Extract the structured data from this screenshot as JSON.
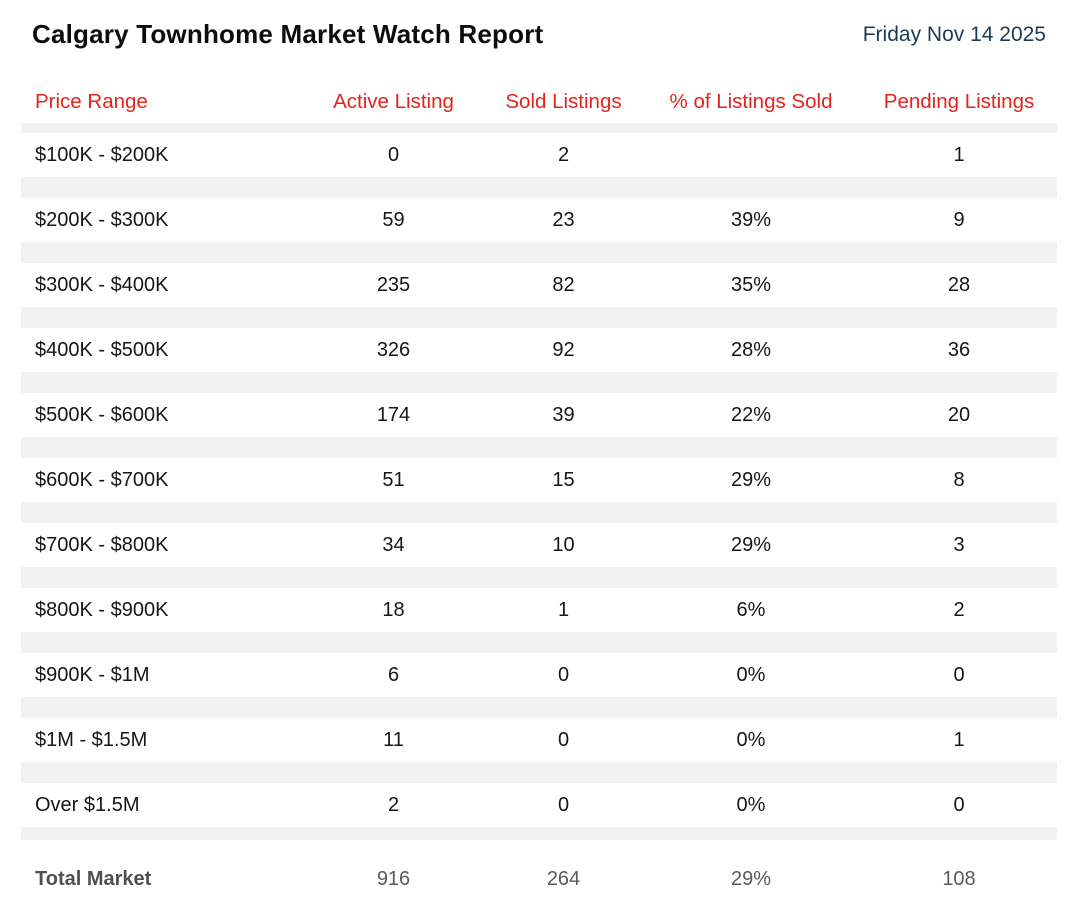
{
  "report": {
    "title": "Calgary Townhome Market Watch Report",
    "date": "Friday Nov 14 2025"
  },
  "colors": {
    "header_red": "#e3231e",
    "date_navy": "#1c3a57",
    "band_gray": "#f1f1f1",
    "total_gray": "#58595b",
    "row_white": "#ffffff"
  },
  "table": {
    "columns": [
      "Price Range",
      "Active Listing",
      "Sold Listings",
      "% of Listings Sold",
      "Pending Listings"
    ],
    "rows": [
      {
        "cells": [
          "$100K - $200K",
          "0",
          "2",
          "",
          "1"
        ]
      },
      {
        "cells": [
          "$200K - $300K",
          "59",
          "23",
          "39%",
          "9"
        ]
      },
      {
        "cells": [
          "$300K - $400K",
          "235",
          "82",
          "35%",
          "28"
        ]
      },
      {
        "cells": [
          "$400K - $500K",
          "326",
          "92",
          "28%",
          "36"
        ]
      },
      {
        "cells": [
          "$500K - $600K",
          "174",
          "39",
          "22%",
          "20"
        ]
      },
      {
        "cells": [
          "$600K - $700K",
          "51",
          "15",
          "29%",
          "8"
        ]
      },
      {
        "cells": [
          "$700K - $800K",
          "34",
          "10",
          "29%",
          "3"
        ]
      },
      {
        "cells": [
          "$800K - $900K",
          "18",
          "1",
          "6%",
          "2"
        ]
      },
      {
        "cells": [
          "$900K - $1M",
          "6",
          "0",
          "0%",
          "0"
        ]
      },
      {
        "cells": [
          "$1M - $1.5M",
          "11",
          "0",
          "0%",
          "1"
        ]
      },
      {
        "cells": [
          "Over $1.5M",
          "2",
          "0",
          "0%",
          "0"
        ]
      }
    ],
    "total": {
      "cells": [
        "Total Market",
        "916",
        "264",
        "29%",
        "108"
      ]
    }
  },
  "chart_data": {
    "type": "table",
    "title": "Calgary Townhome Market Watch Report",
    "columns": [
      "Price Range",
      "Active Listing",
      "Sold Listings",
      "% of Listings Sold",
      "Pending Listings"
    ],
    "rows": [
      [
        "$100K - $200K",
        0,
        2,
        null,
        1
      ],
      [
        "$200K - $300K",
        59,
        23,
        "39%",
        9
      ],
      [
        "$300K - $400K",
        235,
        82,
        "35%",
        28
      ],
      [
        "$400K - $500K",
        326,
        92,
        "28%",
        36
      ],
      [
        "$500K - $600K",
        174,
        39,
        "22%",
        20
      ],
      [
        "$600K - $700K",
        51,
        15,
        "29%",
        8
      ],
      [
        "$700K - $800K",
        34,
        10,
        "29%",
        3
      ],
      [
        "$800K - $900K",
        18,
        1,
        "6%",
        2
      ],
      [
        "$900K - $1M",
        6,
        0,
        "0%",
        0
      ],
      [
        "$1M - $1.5M",
        11,
        0,
        "0%",
        1
      ],
      [
        "Over $1.5M",
        2,
        0,
        "0%",
        0
      ],
      [
        "Total Market",
        916,
        264,
        "29%",
        108
      ]
    ]
  }
}
